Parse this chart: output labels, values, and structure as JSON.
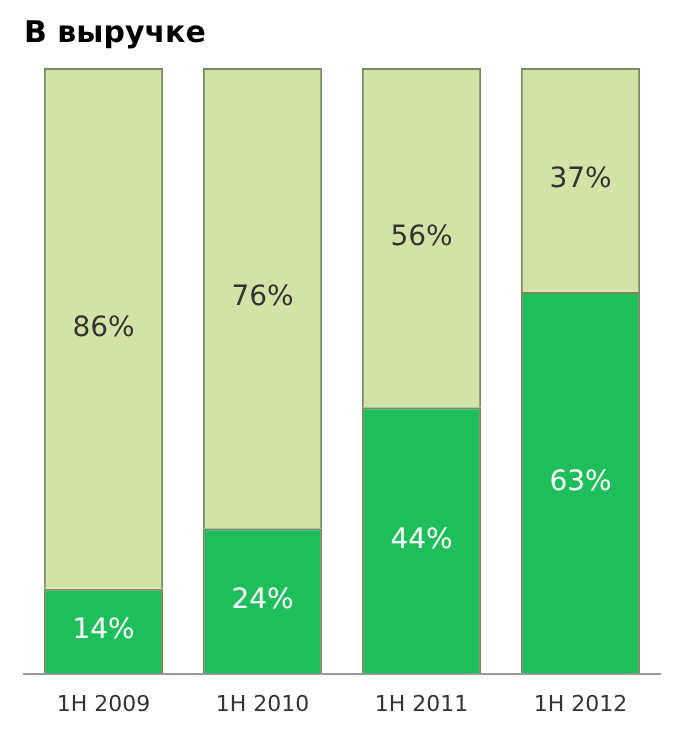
{
  "chart_data": {
    "type": "bar",
    "title": "В выручке",
    "categories": [
      "1H 2009",
      "1H 2010",
      "1H 2011",
      "1H 2012"
    ],
    "stacked": true,
    "series": [
      {
        "color": "#1ebe5a",
        "values": [
          14,
          24,
          44,
          63
        ],
        "value_labels": [
          "14%",
          "24%",
          "44%",
          "63%"
        ]
      },
      {
        "color": "#d3e3a6",
        "values": [
          86,
          76,
          56,
          37
        ],
        "value_labels": [
          "86%",
          "76%",
          "56%",
          "37%"
        ]
      }
    ],
    "grid": false,
    "legend": false
  }
}
